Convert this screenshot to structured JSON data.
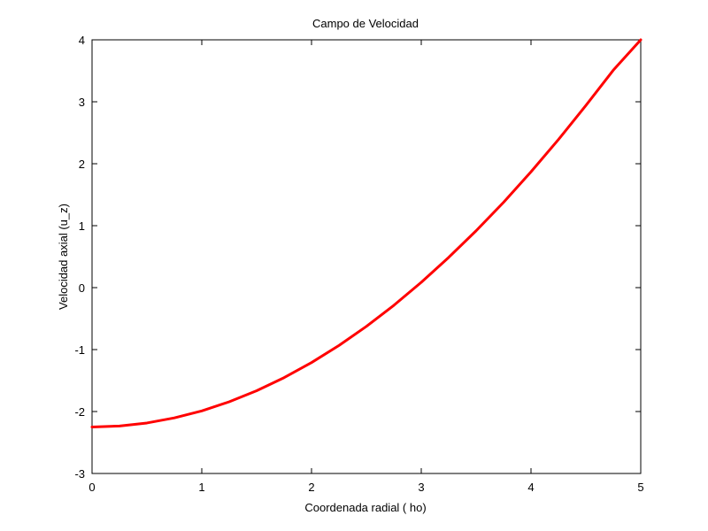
{
  "chart_data": {
    "type": "line",
    "title": "Campo de Velocidad",
    "xlabel": "Coordenada radial ( ho)",
    "ylabel": "Velocidad axial (u_z)",
    "xlim": [
      0,
      5
    ],
    "ylim": [
      -3,
      4
    ],
    "xticks": [
      0,
      1,
      2,
      3,
      4,
      5
    ],
    "yticks": [
      -3,
      -2,
      -1,
      0,
      1,
      2,
      3,
      4
    ],
    "grid": false,
    "series": [
      {
        "color": "#ff0000",
        "x": [
          0,
          0.25,
          0.5,
          0.75,
          1,
          1.25,
          1.5,
          1.75,
          2,
          2.25,
          2.5,
          2.75,
          3,
          3.25,
          3.5,
          3.75,
          4,
          4.25,
          4.5,
          4.75,
          5
        ],
        "y": [
          -2.25,
          -2.234,
          -2.185,
          -2.103,
          -1.99,
          -1.843,
          -1.664,
          -1.453,
          -1.21,
          -0.934,
          -0.626,
          -0.286,
          0.086,
          0.488,
          0.918,
          1.377,
          1.87,
          2.39,
          2.94,
          3.51,
          4.0
        ]
      }
    ]
  }
}
